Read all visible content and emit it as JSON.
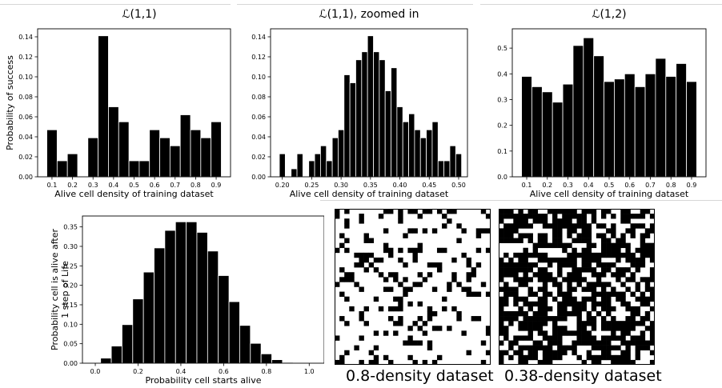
{
  "chart_data": [
    {
      "type": "bar",
      "title": "ℒ(1,1)",
      "xlabel": "Alive cell density of training dataset",
      "ylabel": "Probability of success",
      "xlim": [
        0.03,
        0.97
      ],
      "ylim": [
        0,
        0.148
      ],
      "xticks": [
        "0.1",
        "0.2",
        "0.3",
        "0.4",
        "0.5",
        "0.6",
        "0.7",
        "0.8",
        "0.9"
      ],
      "xtick_values": [
        0.1,
        0.2,
        0.3,
        0.4,
        0.5,
        0.6,
        0.7,
        0.8,
        0.9
      ],
      "yticks": [
        "0.00",
        "0.02",
        "0.04",
        "0.06",
        "0.08",
        "0.10",
        "0.12",
        "0.14"
      ],
      "ytick_values": [
        0,
        0.02,
        0.04,
        0.06,
        0.08,
        0.1,
        0.12,
        0.14
      ],
      "bin_width": 0.05,
      "x": [
        0.1,
        0.15,
        0.2,
        0.25,
        0.3,
        0.35,
        0.4,
        0.45,
        0.5,
        0.55,
        0.6,
        0.65,
        0.7,
        0.75,
        0.8,
        0.85,
        0.9
      ],
      "values": [
        0.047,
        0.016,
        0.023,
        0,
        0.039,
        0.141,
        0.07,
        0.055,
        0.016,
        0.016,
        0.047,
        0.039,
        0.031,
        0.062,
        0.047,
        0.039,
        0.055
      ]
    },
    {
      "type": "bar",
      "title": "ℒ(1,1), zoomed in",
      "xlabel": "Alive cell density of training dataset",
      "ylabel": "",
      "xlim": [
        0.18,
        0.515
      ],
      "ylim": [
        0,
        0.148
      ],
      "xticks": [
        "0.20",
        "0.25",
        "0.30",
        "0.35",
        "0.40",
        "0.45",
        "0.50"
      ],
      "xtick_values": [
        0.2,
        0.25,
        0.3,
        0.35,
        0.4,
        0.45,
        0.5
      ],
      "yticks": [
        "0.00",
        "0.02",
        "0.04",
        "0.06",
        "0.08",
        "0.10",
        "0.12",
        "0.14"
      ],
      "ytick_values": [
        0,
        0.02,
        0.04,
        0.06,
        0.08,
        0.1,
        0.12,
        0.14
      ],
      "bin_width": 0.01,
      "x": [
        0.2,
        0.21,
        0.22,
        0.23,
        0.24,
        0.25,
        0.26,
        0.27,
        0.28,
        0.29,
        0.3,
        0.31,
        0.32,
        0.33,
        0.34,
        0.35,
        0.36,
        0.37,
        0.38,
        0.39,
        0.4,
        0.41,
        0.42,
        0.43,
        0.44,
        0.45,
        0.46,
        0.47,
        0.48,
        0.49,
        0.5
      ],
      "values": [
        0.023,
        0,
        0.008,
        0.023,
        0,
        0.016,
        0.023,
        0.031,
        0.016,
        0.039,
        0.047,
        0.102,
        0.094,
        0.117,
        0.125,
        0.141,
        0.125,
        0.117,
        0.086,
        0.109,
        0.07,
        0.055,
        0.063,
        0.047,
        0.039,
        0.047,
        0.055,
        0.016,
        0.016,
        0.031,
        0.023
      ]
    },
    {
      "type": "bar",
      "title": "ℒ(1,2)",
      "xlabel": "Alive cell density of training dataset",
      "ylabel": "",
      "xlim": [
        0.03,
        0.97
      ],
      "ylim": [
        0,
        0.575
      ],
      "xticks": [
        "0.1",
        "0.2",
        "0.3",
        "0.4",
        "0.5",
        "0.6",
        "0.7",
        "0.8",
        "0.9"
      ],
      "xtick_values": [
        0.1,
        0.2,
        0.3,
        0.4,
        0.5,
        0.6,
        0.7,
        0.8,
        0.9
      ],
      "yticks": [
        "0.0",
        "0.1",
        "0.2",
        "0.3",
        "0.4",
        "0.5"
      ],
      "ytick_values": [
        0,
        0.1,
        0.2,
        0.3,
        0.4,
        0.5
      ],
      "bin_width": 0.05,
      "x": [
        0.1,
        0.15,
        0.2,
        0.25,
        0.3,
        0.35,
        0.4,
        0.45,
        0.5,
        0.55,
        0.6,
        0.65,
        0.7,
        0.75,
        0.8,
        0.85,
        0.9
      ],
      "values": [
        0.39,
        0.35,
        0.33,
        0.29,
        0.36,
        0.51,
        0.54,
        0.47,
        0.37,
        0.38,
        0.4,
        0.35,
        0.4,
        0.46,
        0.39,
        0.44,
        0.37
      ]
    },
    {
      "type": "bar",
      "title": "",
      "xlabel": "Probability cell starts alive",
      "ylabel": "Probability cell is alive after\n1 step of Life",
      "ylabel_lines": [
        "Probability cell is alive after",
        "1 step of Life"
      ],
      "xlim": [
        -0.06,
        1.07
      ],
      "ylim": [
        0,
        0.378
      ],
      "xticks": [
        "0.0",
        "0.2",
        "0.4",
        "0.6",
        "0.8",
        "1.0"
      ],
      "xtick_values": [
        0,
        0.2,
        0.4,
        0.6,
        0.8,
        1.0
      ],
      "yticks": [
        "0.00",
        "0.05",
        "0.10",
        "0.15",
        "0.20",
        "0.25",
        "0.30",
        "0.35"
      ],
      "ytick_values": [
        0,
        0.05,
        0.1,
        0.15,
        0.2,
        0.25,
        0.3,
        0.35
      ],
      "bin_width": 0.05,
      "x": [
        0.0,
        0.05,
        0.1,
        0.15,
        0.2,
        0.25,
        0.3,
        0.35,
        0.4,
        0.45,
        0.5,
        0.55,
        0.6,
        0.65,
        0.7,
        0.75,
        0.8,
        0.85,
        0.9,
        0.95,
        1.0
      ],
      "values": [
        0.0,
        0.013,
        0.044,
        0.099,
        0.165,
        0.234,
        0.296,
        0.341,
        0.363,
        0.363,
        0.336,
        0.288,
        0.225,
        0.158,
        0.097,
        0.051,
        0.024,
        0.009,
        0.002,
        0.0002,
        0.0
      ]
    }
  ],
  "datasets": [
    {
      "caption": "0.8-density dataset",
      "density": 0.8
    },
    {
      "caption": "0.38-density dataset",
      "density": 0.38
    }
  ]
}
